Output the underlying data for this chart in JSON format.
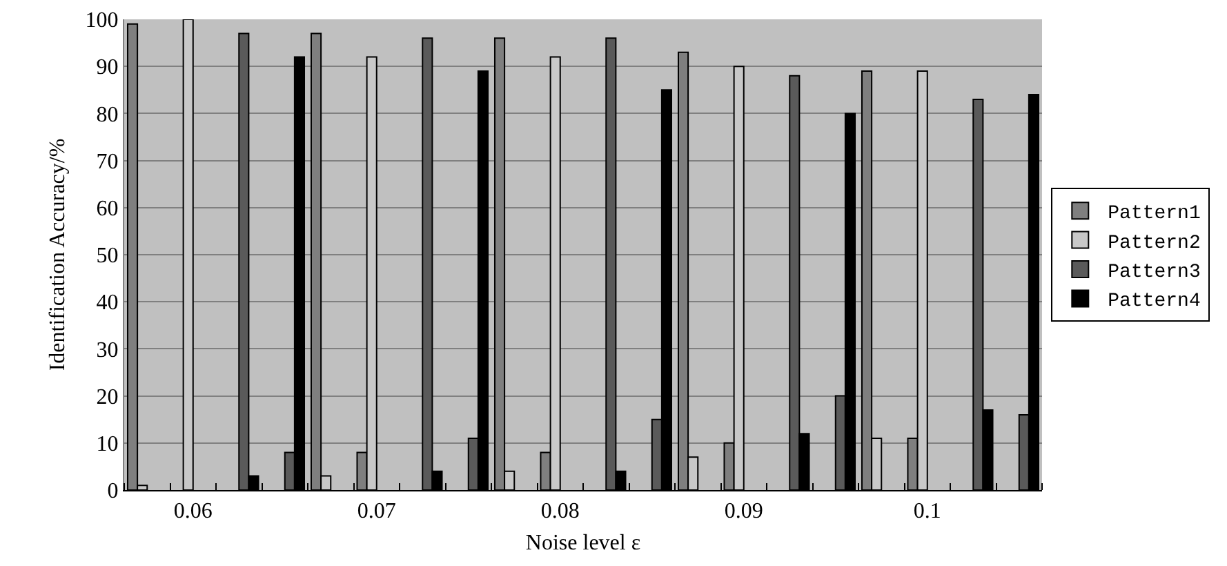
{
  "chart_data": {
    "type": "bar",
    "xlabel": "Noise level ε",
    "ylabel": "Identification Accuracy/%",
    "categories": [
      null,
      "0.06",
      null,
      null,
      null,
      "0.07",
      null,
      null,
      null,
      "0.08",
      null,
      null,
      null,
      "0.09",
      null,
      null,
      null,
      "0.1",
      null,
      null
    ],
    "series": [
      {
        "name": "Pattern1",
        "color": "#7f7f7f",
        "values": [
          99,
          null,
          null,
          null,
          97,
          8,
          null,
          null,
          96,
          8,
          null,
          null,
          93,
          10,
          null,
          null,
          89,
          11,
          null,
          null
        ]
      },
      {
        "name": "Pattern2",
        "color": "#c8c8c8",
        "values": [
          1,
          100,
          null,
          null,
          3,
          92,
          null,
          null,
          4,
          92,
          null,
          null,
          7,
          90,
          null,
          null,
          11,
          89,
          null,
          null
        ]
      },
      {
        "name": "Pattern3",
        "color": "#5a5a5a",
        "values": [
          null,
          null,
          97,
          8,
          null,
          null,
          96,
          11,
          null,
          null,
          96,
          15,
          null,
          null,
          88,
          20,
          null,
          null,
          83,
          16
        ]
      },
      {
        "name": "Pattern4",
        "color": "#000000",
        "values": [
          null,
          null,
          3,
          92,
          null,
          null,
          4,
          89,
          null,
          null,
          4,
          85,
          null,
          null,
          12,
          80,
          null,
          null,
          17,
          84
        ]
      }
    ],
    "ylim": [
      0,
      100
    ],
    "yticks": [
      0,
      10,
      20,
      30,
      40,
      50,
      60,
      70,
      80,
      90,
      100
    ],
    "grid": "y",
    "legend": "right"
  }
}
